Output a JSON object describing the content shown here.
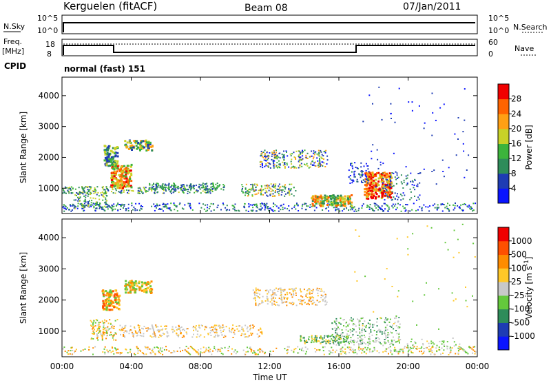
{
  "header": {
    "station": "Kerguelen (fitACF)",
    "beam": "Beam 08",
    "date": "07/Jan/2011"
  },
  "noise_panel": {
    "left_label": "N.Sky",
    "right_label": "N.Search",
    "left_ticks": [
      "10^5",
      "10^0"
    ],
    "right_ticks": [
      "10^5",
      "10^0"
    ]
  },
  "freq_panel": {
    "left_label": "Freq.",
    "left_unit": "[MHz]",
    "right_label": "Nave",
    "left_ticks": [
      "18",
      "8"
    ],
    "right_ticks": [
      "60",
      "0"
    ]
  },
  "cpid": {
    "label": "CPID",
    "mode": "normal (fast) 151"
  },
  "colors": {
    "gray": "#c8c8c8"
  },
  "chart_data": [
    {
      "type": "heatmap",
      "name": "power",
      "ylabel": "Slant Range [km]",
      "xlabel": "Time UT",
      "x_ticks": [
        "00:00",
        "04:00",
        "08:00",
        "12:00",
        "16:00",
        "20:00",
        "00:00"
      ],
      "y_ticks": [
        1000,
        2000,
        3000,
        4000
      ],
      "ylim": [
        180,
        4600
      ],
      "colorbar": {
        "label": "Power [dB]",
        "ticks": [
          4,
          8,
          12,
          16,
          20,
          24,
          28
        ],
        "colors": [
          "#0a14ff",
          "#1e3cb4",
          "#2e8c5a",
          "#3cb43c",
          "#c8d228",
          "#ffa014",
          "#ff6400",
          "#f00000"
        ]
      }
    },
    {
      "type": "heatmap",
      "name": "velocity",
      "ylabel": "Slant Range [km]",
      "xlabel": "Time UT",
      "x_ticks": [
        "00:00",
        "04:00",
        "08:00",
        "12:00",
        "16:00",
        "20:00",
        "00:00"
      ],
      "y_ticks": [
        1000,
        2000,
        3000,
        4000
      ],
      "ylim": [
        180,
        4600
      ],
      "colorbar": {
        "label": "Velocity [m s",
        "label_sup": "-1",
        "label_end": "]",
        "ticks": [
          "1000",
          "500",
          "100",
          "25",
          "-25",
          "-100",
          "-500",
          "-1000"
        ],
        "colors": [
          "#0a14ff",
          "#1e3cb4",
          "#2e8c5a",
          "#64c83c",
          "#c8c8c8",
          "#ffc828",
          "#ff8c00",
          "#ff5000",
          "#f00000"
        ]
      }
    }
  ]
}
